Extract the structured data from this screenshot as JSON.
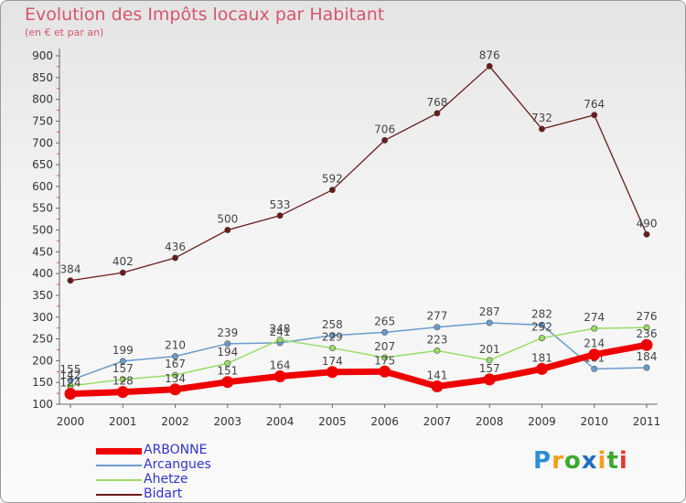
{
  "chart_data": {
    "type": "line",
    "title": "Evolution des Impôts locaux par Habitant",
    "subtitle": "(en € et par an)",
    "categories": [
      "2000",
      "2001",
      "2002",
      "2003",
      "2004",
      "2005",
      "2006",
      "2007",
      "2008",
      "2009",
      "2010",
      "2011"
    ],
    "ylim": [
      100,
      900
    ],
    "yticks": [
      100,
      150,
      200,
      250,
      300,
      350,
      400,
      450,
      500,
      550,
      600,
      650,
      700,
      750,
      800,
      850,
      900
    ],
    "grid": false,
    "legend_position": "bottom-left",
    "series": [
      {
        "name": "Bidart",
        "color": "#6b1a1a",
        "values": [
          384,
          402,
          436,
          500,
          533,
          592,
          706,
          768,
          876,
          732,
          764,
          490
        ]
      },
      {
        "name": "Arcangues",
        "color": "#6a9ccc",
        "values": [
          155,
          199,
          210,
          239,
          241,
          258,
          265,
          277,
          287,
          282,
          181,
          184
        ]
      },
      {
        "name": "Ahetze",
        "color": "#99dd66",
        "values": [
          142,
          157,
          167,
          194,
          248,
          229,
          207,
          223,
          201,
          252,
          274,
          276
        ]
      },
      {
        "name": "ARBONNE",
        "color": "#ee0000",
        "values": [
          124,
          128,
          134,
          151,
          164,
          174,
          175,
          141,
          157,
          181,
          214,
          236
        ]
      }
    ]
  },
  "legend": {
    "items": [
      {
        "label": "ARBONNE",
        "color": "#ee0000"
      },
      {
        "label": "Arcangues",
        "color": "#6a9ccc"
      },
      {
        "label": "Ahetze",
        "color": "#99dd66"
      },
      {
        "label": "Bidart",
        "color": "#6b1a1a"
      }
    ]
  },
  "logo": {
    "letters": [
      {
        "char": "P",
        "color": "#2b8fd6"
      },
      {
        "char": "r",
        "color": "#f2a01a"
      },
      {
        "char": "o",
        "color": "#3da832"
      },
      {
        "char": "x",
        "color": "#1f6fc4"
      },
      {
        "char": "i",
        "color": "#f2a01a"
      },
      {
        "char": "t",
        "color": "#3da832"
      },
      {
        "char": "i",
        "color": "#e03b2d"
      }
    ]
  }
}
